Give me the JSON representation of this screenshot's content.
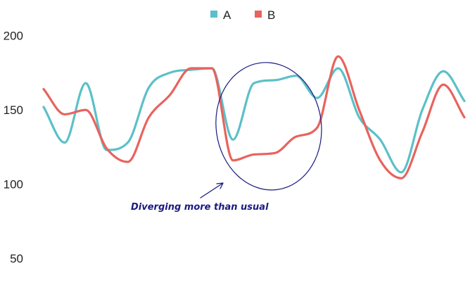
{
  "chart_data": {
    "type": "line",
    "title": "",
    "xlabel": "",
    "ylabel": "",
    "ylim": [
      25,
      205
    ],
    "y_ticks": [
      200,
      150,
      100,
      50
    ],
    "grid": false,
    "legend_position": "top-center",
    "x": [
      0,
      1,
      2,
      3,
      4,
      5,
      6,
      7,
      8,
      9,
      10,
      11,
      12,
      13,
      14,
      15,
      16,
      17,
      18,
      19,
      20
    ],
    "series": [
      {
        "name": "A",
        "color": "#5bc0c8",
        "values": [
          152,
          128,
          168,
          123,
          128,
          165,
          175,
          177,
          178,
          130,
          168,
          170,
          173,
          158,
          178,
          145,
          130,
          108,
          150,
          176,
          156
        ]
      },
      {
        "name": "B",
        "color": "#e8635e",
        "values": [
          164,
          147,
          150,
          124,
          115,
          145,
          160,
          178,
          178,
          116,
          120,
          121,
          132,
          138,
          186,
          150,
          116,
          104,
          135,
          167,
          145
        ]
      }
    ],
    "annotations": [
      {
        "text": "Diverging more than usual",
        "color": "#1a1a80",
        "x_range": [
          8.2,
          13.2
        ],
        "y_range": [
          96,
          182
        ]
      }
    ]
  }
}
